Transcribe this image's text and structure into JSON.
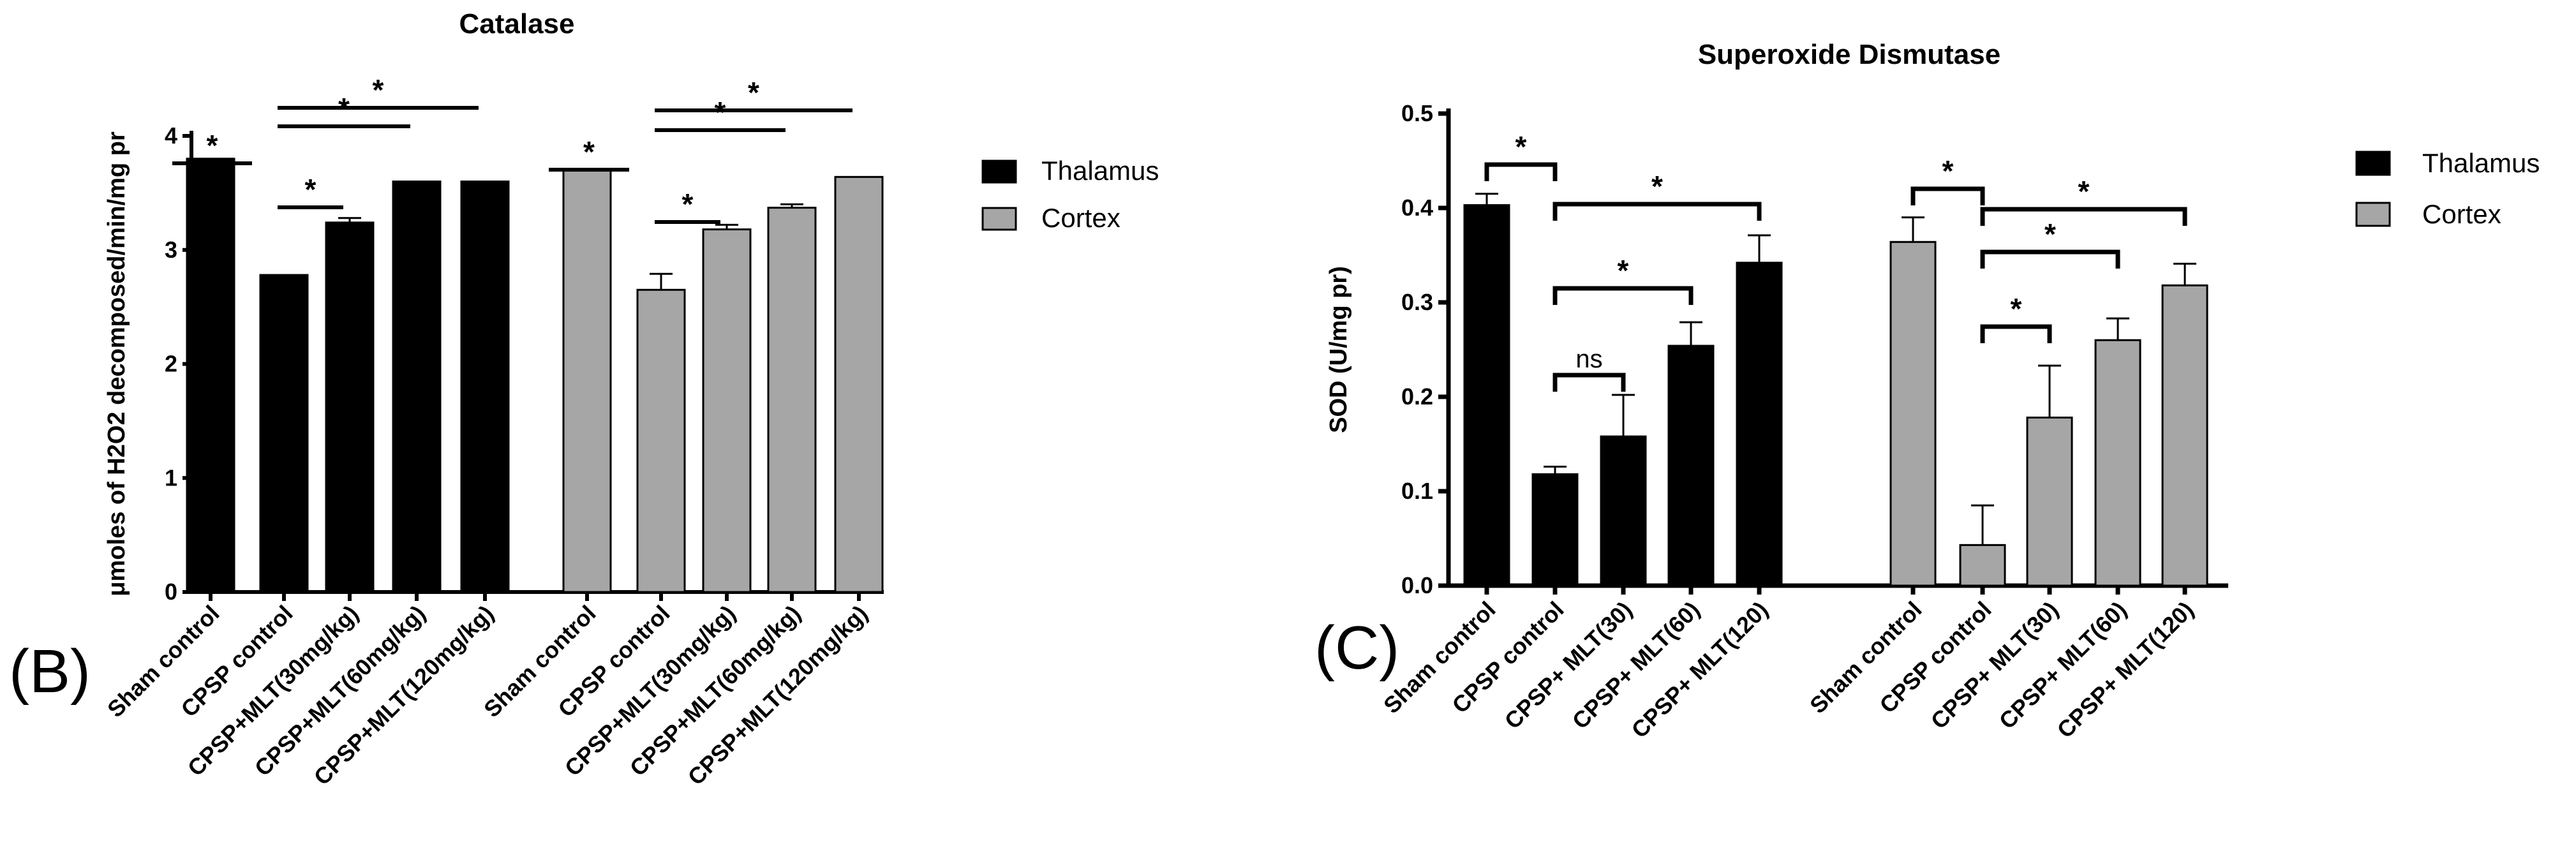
{
  "figure_labels": {
    "b": "(B)",
    "c": "(C)"
  },
  "chart_data": [
    {
      "id": "catalase",
      "type": "bar",
      "title": "Catalase",
      "xlabel": "",
      "ylabel": "μmoles of H2O2 decomposed/min/mg pr",
      "ylim": [
        0,
        4
      ],
      "yticks": [
        "0",
        "1",
        "2",
        "3",
        "4"
      ],
      "categories": [
        "Sham control",
        "CPSP control",
        "CPSP+MLT(30mg/kg)",
        "CPSP+MLT(60mg/kg)",
        "CPSP+MLT(120mg/kg)"
      ],
      "legend_position": "right",
      "series": [
        {
          "name": "Thalamus",
          "color": "#000000",
          "values": [
            3.8,
            2.78,
            3.24,
            3.6,
            3.6
          ],
          "errors": [
            0.0,
            0.0,
            0.04,
            0.0,
            0.0
          ]
        },
        {
          "name": "Cortex",
          "color": "#a6a6a6",
          "values": [
            3.7,
            2.65,
            3.18,
            3.37,
            3.64
          ],
          "errors": [
            0.0,
            0.14,
            0.04,
            0.03,
            0.0
          ]
        }
      ],
      "significance": [
        {
          "series": 0,
          "from": 0,
          "to": 1,
          "label": "*",
          "style": "line"
        },
        {
          "series": 0,
          "from": 1,
          "to": 2,
          "label": "*",
          "style": "line"
        },
        {
          "series": 0,
          "from": 1,
          "to": 3,
          "label": "*",
          "style": "line"
        },
        {
          "series": 0,
          "from": 1,
          "to": 4,
          "label": "*",
          "style": "line"
        },
        {
          "series": 1,
          "from": 0,
          "to": 1,
          "label": "*",
          "style": "line"
        },
        {
          "series": 1,
          "from": 1,
          "to": 2,
          "label": "*",
          "style": "line"
        },
        {
          "series": 1,
          "from": 1,
          "to": 3,
          "label": "*",
          "style": "line"
        },
        {
          "series": 1,
          "from": 1,
          "to": 4,
          "label": "*",
          "style": "line"
        }
      ]
    },
    {
      "id": "sod",
      "type": "bar",
      "title": "Superoxide Dismutase",
      "xlabel": "",
      "ylabel": "SOD (U/mg pr)",
      "ylim": [
        0,
        0.5
      ],
      "yticks": [
        "0.0",
        "0.1",
        "0.2",
        "0.3",
        "0.4",
        "0.5"
      ],
      "categories": [
        "Sham control",
        "CPSP control",
        "CPSP+ MLT(30)",
        "CPSP+ MLT(60)",
        "CPSP+ MLT(120)"
      ],
      "legend_position": "right",
      "series": [
        {
          "name": "Thalamus",
          "color": "#000000",
          "values": [
            0.403,
            0.118,
            0.158,
            0.254,
            0.342
          ],
          "errors": [
            0.012,
            0.008,
            0.044,
            0.025,
            0.029
          ]
        },
        {
          "name": "Cortex",
          "color": "#a6a6a6",
          "values": [
            0.364,
            0.043,
            0.178,
            0.26,
            0.318
          ],
          "errors": [
            0.026,
            0.042,
            0.055,
            0.023,
            0.023
          ]
        }
      ],
      "significance": [
        {
          "series": 0,
          "from": 0,
          "to": 1,
          "label": "*",
          "style": "bracket"
        },
        {
          "series": 0,
          "from": 1,
          "to": 2,
          "label": "ns",
          "style": "bracket"
        },
        {
          "series": 0,
          "from": 1,
          "to": 3,
          "label": "*",
          "style": "bracket"
        },
        {
          "series": 0,
          "from": 1,
          "to": 4,
          "label": "*",
          "style": "bracket"
        },
        {
          "series": 1,
          "from": 0,
          "to": 1,
          "label": "*",
          "style": "bracket"
        },
        {
          "series": 1,
          "from": 1,
          "to": 2,
          "label": "*",
          "style": "bracket"
        },
        {
          "series": 1,
          "from": 1,
          "to": 3,
          "label": "*",
          "style": "bracket"
        },
        {
          "series": 1,
          "from": 1,
          "to": 4,
          "label": "*",
          "style": "bracket"
        }
      ]
    }
  ]
}
